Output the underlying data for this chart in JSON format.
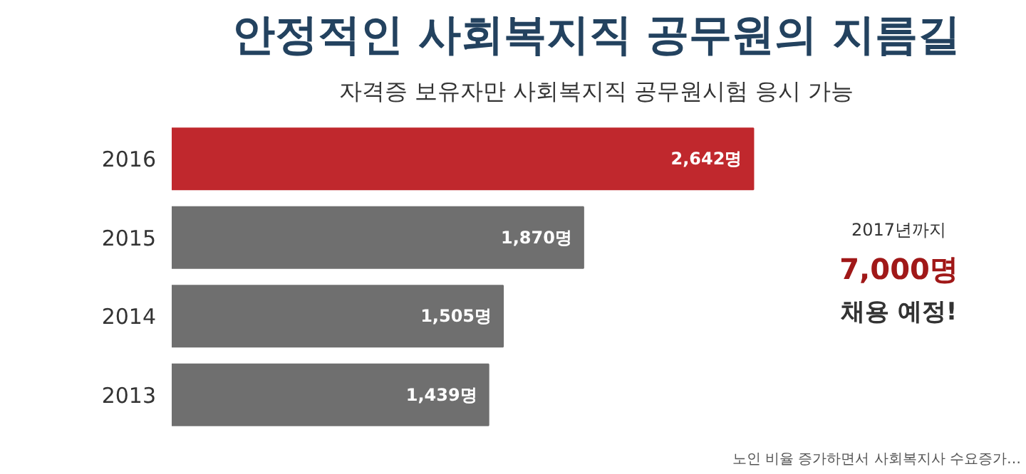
{
  "chart_data": {
    "type": "bar",
    "orientation": "horizontal",
    "title": "안정적인 사회복지직 공무원의 지름길",
    "subtitle": "자격증 보유자만 사회복지직 공무원시험 응시 가능",
    "categories": [
      "2016",
      "2015",
      "2014",
      "2013"
    ],
    "values": [
      2642,
      1870,
      1505,
      1439
    ],
    "value_labels": [
      "2,642명",
      "1,870명",
      "1,505명",
      "1,439명"
    ],
    "colors": [
      "#c0282d",
      "#6f6f6f",
      "#6f6f6f",
      "#6f6f6f"
    ],
    "annotations": [
      "2017년까지",
      "7,000명",
      "채용 예정!",
      "노인 비율 증가하면서 사회복지사 수요증가…"
    ],
    "grid": false
  }
}
